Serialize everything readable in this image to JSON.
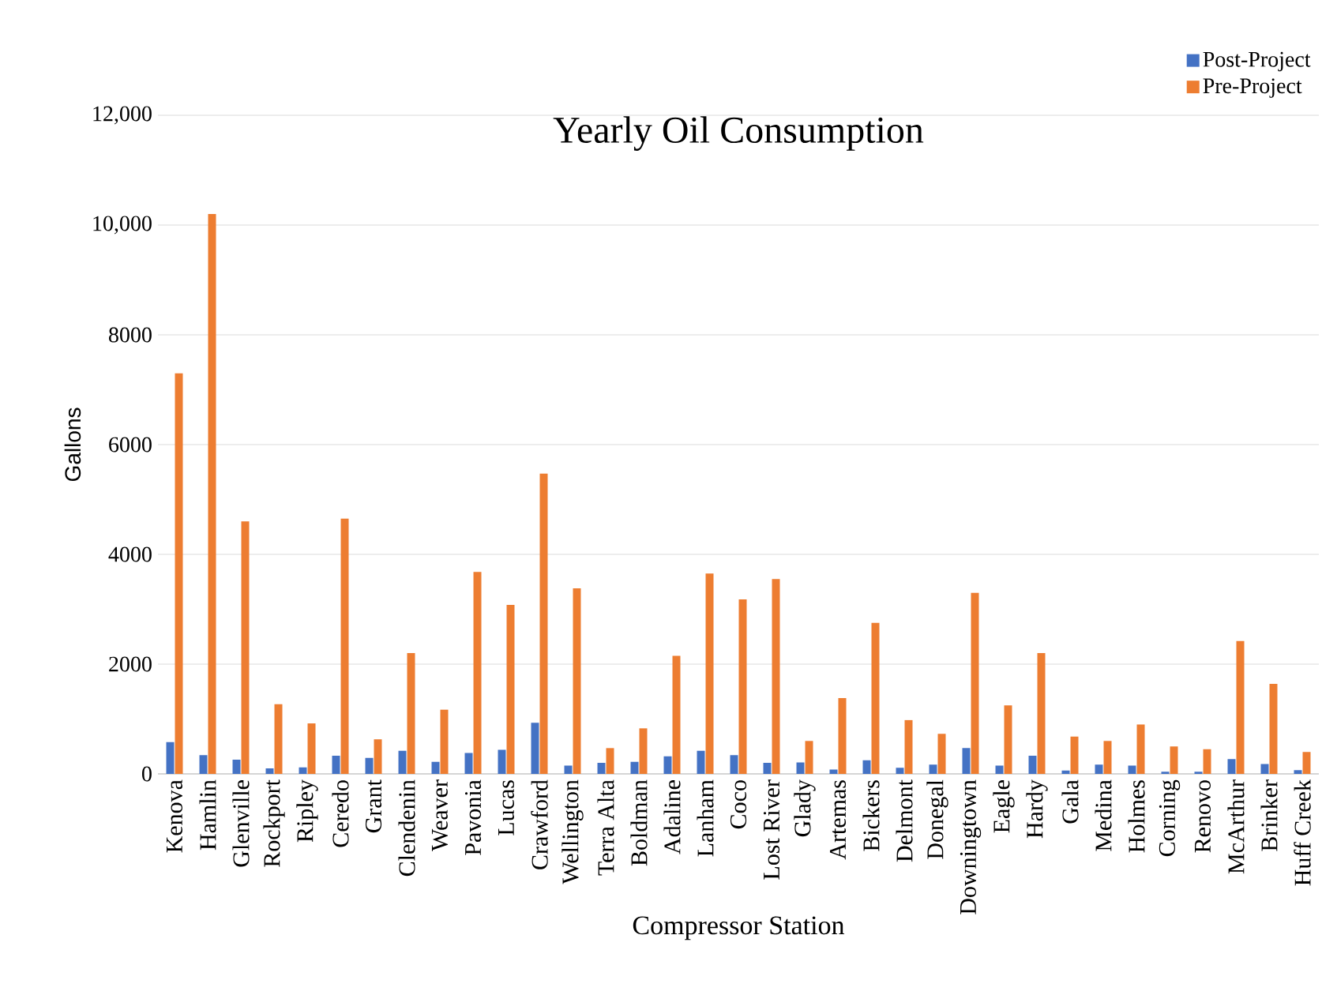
{
  "chart_data": {
    "type": "bar",
    "title": "Yearly Oil Consumption",
    "xlabel": "Compressor Station",
    "ylabel": "Gallons",
    "categories": [
      "Kenova",
      "Hamlin",
      "Glenville",
      "Rockport",
      "Ripley",
      "Ceredo",
      "Grant",
      "Clendenin",
      "Weaver",
      "Pavonia",
      "Lucas",
      "Crawford",
      "Wellington",
      "Terra Alta",
      "Boldman",
      "Adaline",
      "Lanham",
      "Coco",
      "Lost River",
      "Glady",
      "Artemas",
      "Bickers",
      "Delmont",
      "Donegal",
      "Downingtown",
      "Eagle",
      "Hardy",
      "Gala",
      "Medina",
      "Holmes",
      "Corning",
      "Renovo",
      "McArthur",
      "Brinker",
      "Huff Creek"
    ],
    "series": [
      {
        "name": "Post-Project",
        "color": "#4472c4",
        "values": [
          580,
          340,
          260,
          100,
          120,
          330,
          290,
          420,
          220,
          380,
          440,
          930,
          150,
          200,
          220,
          320,
          420,
          340,
          200,
          210,
          80,
          250,
          110,
          170,
          470,
          150,
          330,
          60,
          170,
          150,
          40,
          40,
          270,
          180,
          70
        ]
      },
      {
        "name": "Pre-Project",
        "color": "#ed7d31",
        "values": [
          7300,
          10200,
          4600,
          1270,
          920,
          4650,
          630,
          2200,
          1170,
          3680,
          3080,
          5470,
          3380,
          470,
          830,
          2150,
          3650,
          3180,
          3550,
          600,
          1380,
          2750,
          980,
          730,
          3300,
          1250,
          2200,
          680,
          600,
          900,
          500,
          450,
          2420,
          1640,
          400
        ]
      }
    ],
    "ylim": [
      0,
      12000
    ],
    "yticks": [
      0,
      2000,
      4000,
      6000,
      8000,
      {
        "value": 10000,
        "label": "10,000"
      },
      {
        "value": 12000,
        "label": "12,000"
      }
    ],
    "grid": "y",
    "legend": "top right"
  }
}
